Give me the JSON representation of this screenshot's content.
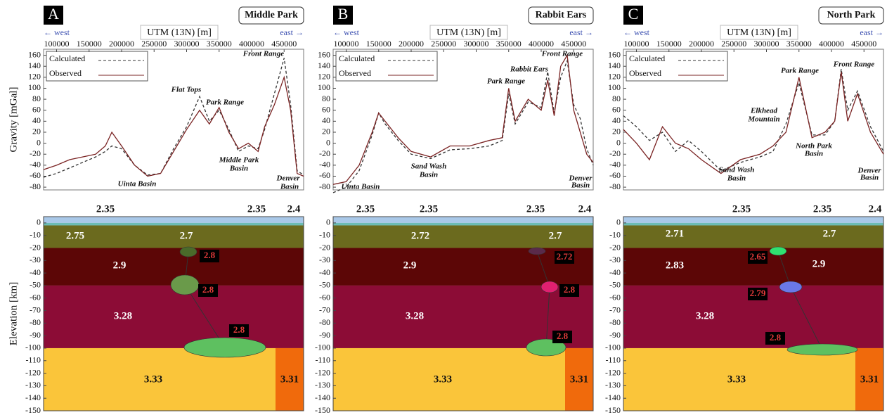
{
  "chart_data": [
    {
      "type": "line",
      "letter": "A",
      "title": "Middle Park",
      "west": "← west",
      "east": "east →",
      "x_label": "UTM (13N) [m]",
      "y_label": "Gravity [mGal]",
      "x": [
        80000,
        100000,
        120000,
        140000,
        160000,
        175000,
        185000,
        200000,
        220000,
        240000,
        260000,
        280000,
        300000,
        320000,
        335000,
        350000,
        365000,
        380000,
        395000,
        410000,
        420000,
        435000,
        450000,
        460000,
        470000,
        480000
      ],
      "series": [
        {
          "name": "Calculated",
          "color": "#333333",
          "dashed": true,
          "values": [
            -62,
            -55,
            -45,
            -35,
            -25,
            -15,
            -5,
            -10,
            -40,
            -58,
            -55,
            -10,
            30,
            85,
            40,
            60,
            25,
            -15,
            -5,
            -10,
            25,
            90,
            155,
            70,
            -50,
            -58
          ]
        },
        {
          "name": "Observed",
          "color": "#7a2323",
          "dashed": false,
          "values": [
            -48,
            -40,
            -30,
            -25,
            -20,
            -5,
            20,
            -5,
            -40,
            -60,
            -55,
            -15,
            25,
            60,
            35,
            65,
            20,
            -10,
            0,
            -15,
            30,
            70,
            120,
            60,
            -55,
            -60
          ]
        }
      ],
      "xlim": [
        80000,
        480000
      ],
      "xticks": [
        100000,
        150000,
        200000,
        250000,
        300000,
        350000,
        400000,
        450000
      ],
      "ylim": [
        -85,
        171
      ],
      "yticks": [
        -80,
        -60,
        -40,
        -20,
        0,
        20,
        40,
        60,
        80,
        100,
        120,
        140,
        160
      ],
      "annotations": [
        "Flat Tops",
        "Park Range",
        "Front Range",
        "Middle Park",
        "Basin",
        "Uinta Basin",
        "Denver",
        "Basin"
      ],
      "section": {
        "y_label": "Elevation [km]",
        "ylim": [
          -150,
          5
        ],
        "yticks": [
          0,
          -10,
          -20,
          -30,
          -40,
          -50,
          -60,
          -70,
          -80,
          -90,
          -100,
          -110,
          -120,
          -130,
          -140,
          -150
        ],
        "surface_labels": [
          "2.35",
          "2.35",
          "2.4"
        ],
        "density_labels": [
          {
            "text": "2.75",
            "boxed": false
          },
          {
            "text": "2.7",
            "boxed": false
          },
          {
            "text": "2.8",
            "boxed": true
          },
          {
            "text": "2.9",
            "boxed": false
          },
          {
            "text": "2.8",
            "boxed": true
          },
          {
            "text": "3.28",
            "boxed": false
          },
          {
            "text": "2.8",
            "boxed": true
          },
          {
            "text": "3.33",
            "boxed": false
          },
          {
            "text": "3.31",
            "boxed": false
          }
        ]
      }
    },
    {
      "type": "line",
      "letter": "B",
      "title": "Rabbit Ears",
      "west": "← west",
      "east": "east →",
      "x_label": "UTM (13N) [m]",
      "x": [
        80000,
        100000,
        120000,
        140000,
        150000,
        160000,
        180000,
        200000,
        230000,
        260000,
        290000,
        320000,
        340000,
        350000,
        360000,
        380000,
        400000,
        410000,
        420000,
        430000,
        440000,
        450000,
        460000,
        470000,
        480000
      ],
      "series": [
        {
          "name": "Calculated",
          "color": "#333333",
          "dashed": true,
          "values": [
            -90,
            -80,
            -50,
            15,
            55,
            35,
            5,
            -20,
            -28,
            -12,
            -10,
            -5,
            5,
            90,
            35,
            75,
            65,
            130,
            55,
            120,
            150,
            70,
            45,
            -10,
            -40
          ]
        },
        {
          "name": "Observed",
          "color": "#7a2323",
          "dashed": false,
          "values": [
            -75,
            -70,
            -40,
            20,
            55,
            40,
            10,
            -15,
            -25,
            -5,
            -5,
            5,
            10,
            100,
            40,
            80,
            60,
            115,
            50,
            140,
            160,
            60,
            20,
            -20,
            -35
          ]
        }
      ],
      "xlim": [
        80000,
        480000
      ],
      "xticks": [
        100000,
        150000,
        200000,
        250000,
        300000,
        350000,
        400000,
        450000
      ],
      "ylim": [
        -85,
        171
      ],
      "yticks": [
        -80,
        -60,
        -40,
        -20,
        0,
        20,
        40,
        60,
        80,
        100,
        120,
        140,
        160
      ],
      "annotations": [
        "Rabbit Ears",
        "Park Range",
        "Front Range",
        "Sand Wash",
        "Basin",
        "Uinta Basin",
        "Denver",
        "Basin"
      ],
      "section": {
        "ylim": [
          -150,
          5
        ],
        "yticks": [
          0,
          -10,
          -20,
          -30,
          -40,
          -50,
          -60,
          -70,
          -80,
          -90,
          -100,
          -110,
          -120,
          -130,
          -140,
          -150
        ],
        "surface_labels": [
          "2.35",
          "2.35",
          "2.35",
          "2.4"
        ],
        "density_labels": [
          {
            "text": "2.72",
            "boxed": false
          },
          {
            "text": "2.7",
            "boxed": false
          },
          {
            "text": "2.72",
            "boxed": true
          },
          {
            "text": "2.9",
            "boxed": false
          },
          {
            "text": "2.8",
            "boxed": true
          },
          {
            "text": "3.28",
            "boxed": false
          },
          {
            "text": "2.8",
            "boxed": true
          },
          {
            "text": "3.33",
            "boxed": false
          },
          {
            "text": "3.31",
            "boxed": false
          }
        ]
      }
    },
    {
      "type": "line",
      "letter": "C",
      "title": "North Park",
      "west": "← west",
      "east": "east →",
      "x_label": "UTM (13N) [m]",
      "x": [
        80000,
        100000,
        120000,
        140000,
        160000,
        180000,
        200000,
        230000,
        260000,
        290000,
        310000,
        330000,
        350000,
        370000,
        390000,
        405000,
        415000,
        425000,
        440000,
        460000,
        480000
      ],
      "series": [
        {
          "name": "Calculated",
          "color": "#333333",
          "dashed": true,
          "values": [
            50,
            30,
            5,
            20,
            -15,
            5,
            -15,
            -50,
            -35,
            -25,
            -15,
            35,
            110,
            15,
            15,
            40,
            135,
            60,
            95,
            30,
            -15
          ]
        },
        {
          "name": "Observed",
          "color": "#7a2323",
          "dashed": false,
          "values": [
            25,
            0,
            -30,
            30,
            0,
            -10,
            -30,
            -55,
            -30,
            -20,
            -5,
            20,
            120,
            10,
            20,
            40,
            130,
            40,
            90,
            20,
            -20
          ]
        }
      ],
      "xlim": [
        80000,
        480000
      ],
      "xticks": [
        100000,
        150000,
        200000,
        250000,
        300000,
        350000,
        400000,
        450000
      ],
      "ylim": [
        -85,
        171
      ],
      "yticks": [
        -80,
        -60,
        -40,
        -20,
        0,
        20,
        40,
        60,
        80,
        100,
        120,
        140,
        160
      ],
      "annotations": [
        "Park Range",
        "Front Range",
        "Elkhead",
        "Mountain",
        "North Park",
        "Basin",
        "Sand Wash",
        "Basin",
        "Denver",
        "Basin"
      ],
      "section": {
        "ylim": [
          -150,
          5
        ],
        "yticks": [
          0,
          -10,
          -20,
          -30,
          -40,
          -50,
          -60,
          -70,
          -80,
          -90,
          -100,
          -110,
          -120,
          -130,
          -140,
          -150
        ],
        "surface_labels": [
          "2.35",
          "2.35",
          "2.4"
        ],
        "density_labels": [
          {
            "text": "2.71",
            "boxed": false
          },
          {
            "text": "2.7",
            "boxed": false
          },
          {
            "text": "2.65",
            "boxed": true
          },
          {
            "text": "2.83",
            "boxed": false
          },
          {
            "text": "2.9",
            "boxed": false
          },
          {
            "text": "2.79",
            "boxed": true
          },
          {
            "text": "3.28",
            "boxed": false
          },
          {
            "text": "2.8",
            "boxed": true
          },
          {
            "text": "3.33",
            "boxed": false
          },
          {
            "text": "3.31",
            "boxed": false
          }
        ]
      }
    }
  ]
}
